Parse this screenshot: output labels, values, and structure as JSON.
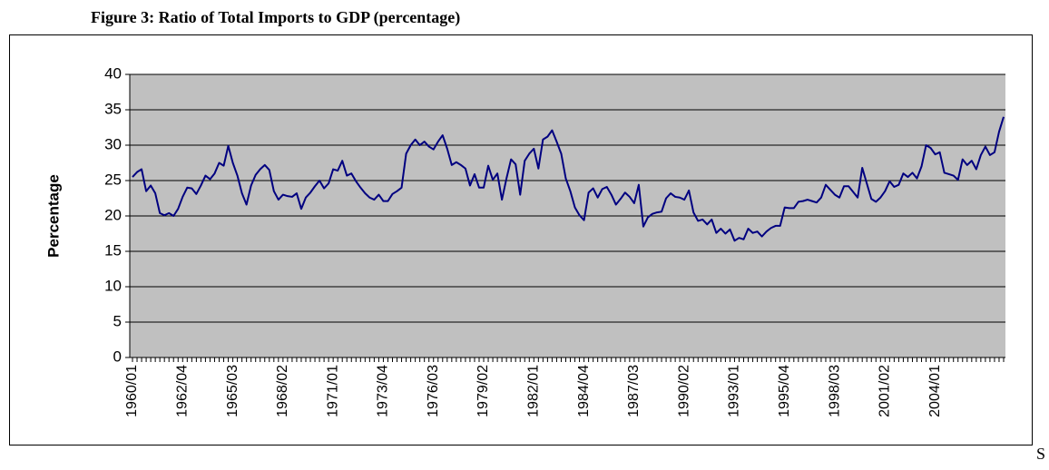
{
  "chart_data": {
    "type": "line",
    "title": "Figure 3: Ratio of Total Imports to GDP (percentage)",
    "y_label": "Percentage",
    "trailing_text": "S",
    "color": "#000080",
    "grid": true,
    "ylim": [
      0,
      40
    ],
    "yticks": [
      0,
      5,
      10,
      15,
      20,
      25,
      30,
      35,
      40
    ],
    "categories": [
      "1960/01",
      null,
      null,
      null,
      null,
      null,
      null,
      null,
      null,
      null,
      null,
      "1962/04",
      null,
      null,
      null,
      null,
      null,
      null,
      null,
      null,
      null,
      null,
      "1965/03",
      null,
      null,
      null,
      null,
      null,
      null,
      null,
      null,
      null,
      null,
      "1968/02",
      null,
      null,
      null,
      null,
      null,
      null,
      null,
      null,
      null,
      null,
      "1971/01",
      null,
      null,
      null,
      null,
      null,
      null,
      null,
      null,
      null,
      null,
      "1973/04",
      null,
      null,
      null,
      null,
      null,
      null,
      null,
      null,
      null,
      null,
      "1976/03",
      null,
      null,
      null,
      null,
      null,
      null,
      null,
      null,
      null,
      null,
      "1979/02",
      null,
      null,
      null,
      null,
      null,
      null,
      null,
      null,
      null,
      null,
      "1982/01",
      null,
      null,
      null,
      null,
      null,
      null,
      null,
      null,
      null,
      null,
      "1984/04",
      null,
      null,
      null,
      null,
      null,
      null,
      null,
      null,
      null,
      null,
      "1987/03",
      null,
      null,
      null,
      null,
      null,
      null,
      null,
      null,
      null,
      null,
      "1990/02",
      null,
      null,
      null,
      null,
      null,
      null,
      null,
      null,
      null,
      null,
      "1993/01",
      null,
      null,
      null,
      null,
      null,
      null,
      null,
      null,
      null,
      null,
      "1995/04",
      null,
      null,
      null,
      null,
      null,
      null,
      null,
      null,
      null,
      null,
      "1998/03",
      null,
      null,
      null,
      null,
      null,
      null,
      null,
      null,
      null,
      null,
      "2001/02",
      null,
      null,
      null,
      null,
      null,
      null,
      null,
      null,
      null,
      null,
      "2004/01",
      null,
      null,
      null,
      null,
      null,
      null,
      null,
      null,
      null,
      null,
      null,
      null,
      null,
      null,
      null
    ],
    "values": [
      25.5,
      26.2,
      26.6,
      23.5,
      24.3,
      23.2,
      20.4,
      20.1,
      20.4,
      20.0,
      21.0,
      22.7,
      24.0,
      23.9,
      23.1,
      24.3,
      25.7,
      25.2,
      26.0,
      27.5,
      27.1,
      29.9,
      27.5,
      25.7,
      23.2,
      21.6,
      24.3,
      25.8,
      26.6,
      27.2,
      26.5,
      23.5,
      22.3,
      23.0,
      22.8,
      22.7,
      23.2,
      21.0,
      22.6,
      23.3,
      24.2,
      25.0,
      23.9,
      24.6,
      26.6,
      26.4,
      27.8,
      25.7,
      26.0,
      24.9,
      24.0,
      23.2,
      22.6,
      22.3,
      23.0,
      22.1,
      22.1,
      23.1,
      23.5,
      24.0,
      28.8,
      30.0,
      30.8,
      30.0,
      30.5,
      29.8,
      29.4,
      30.5,
      31.4,
      29.5,
      27.2,
      27.6,
      27.2,
      26.7,
      24.3,
      25.9,
      24.0,
      24.0,
      27.1,
      25.1,
      26.0,
      22.3,
      25.3,
      28.0,
      27.3,
      23.0,
      27.8,
      28.8,
      29.5,
      26.7,
      30.8,
      31.2,
      32.1,
      30.5,
      28.8,
      25.3,
      23.5,
      21.2,
      20.1,
      19.4,
      23.3,
      23.9,
      22.6,
      23.8,
      24.1,
      23.0,
      21.6,
      22.4,
      23.3,
      22.7,
      21.8,
      24.4,
      18.5,
      19.8,
      20.3,
      20.5,
      20.6,
      22.5,
      23.2,
      22.7,
      22.6,
      22.3,
      23.6,
      20.5,
      19.3,
      19.5,
      18.8,
      19.5,
      17.6,
      18.2,
      17.5,
      18.1,
      16.5,
      16.9,
      16.7,
      18.2,
      17.6,
      17.8,
      17.1,
      17.8,
      18.3,
      18.6,
      18.6,
      21.2,
      21.1,
      21.1,
      22.0,
      22.1,
      22.3,
      22.1,
      21.9,
      22.6,
      24.4,
      23.7,
      23.0,
      22.6,
      24.2,
      24.2,
      23.4,
      22.6,
      26.8,
      24.6,
      22.4,
      22.0,
      22.6,
      23.5,
      24.9,
      24.1,
      24.4,
      26.0,
      25.5,
      26.1,
      25.3,
      27.0,
      30.0,
      29.6,
      28.7,
      29.0,
      26.1,
      25.9,
      25.7,
      25.1,
      28.0,
      27.2,
      27.8,
      26.6,
      28.6,
      29.8,
      28.6,
      29.0,
      31.9,
      34.0
    ]
  }
}
